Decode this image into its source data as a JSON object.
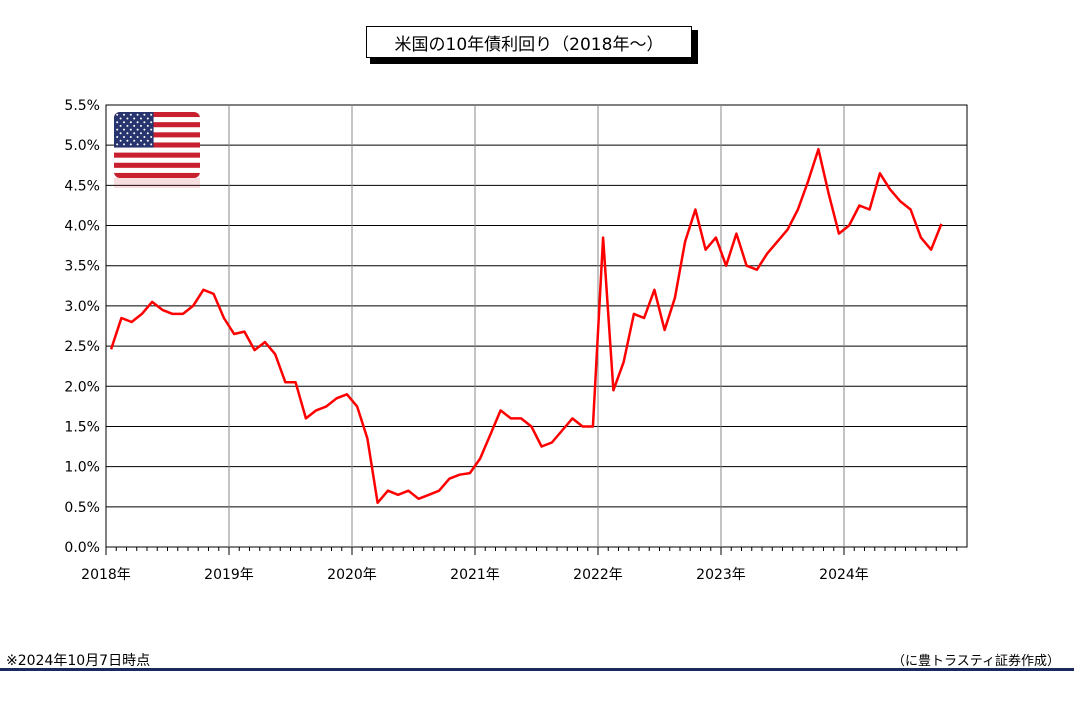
{
  "chart_data": {
    "type": "line",
    "title": "米国の10年債利回り（2018年～）",
    "xlabel": "",
    "ylabel": "",
    "ylim": [
      0.0,
      5.5
    ],
    "y_ticks": [
      "0.0%",
      "0.5%",
      "1.0%",
      "1.5%",
      "2.0%",
      "2.5%",
      "3.0%",
      "3.5%",
      "4.0%",
      "4.5%",
      "5.0%",
      "5.5%"
    ],
    "x_ticks": [
      "2018年",
      "2019年",
      "2020年",
      "2021年",
      "2022年",
      "2023年",
      "2024年"
    ],
    "x_range": [
      "2018-01",
      "2024-12"
    ],
    "grid": true,
    "line_color": "#ff0000",
    "series": [
      {
        "values": [
          [
            "2018-01",
            2.46
          ],
          [
            "2018-02",
            2.85
          ],
          [
            "2018-03",
            2.8
          ],
          [
            "2018-04",
            2.9
          ],
          [
            "2018-05",
            3.05
          ],
          [
            "2018-06",
            2.95
          ],
          [
            "2018-07",
            2.9
          ],
          [
            "2018-08",
            2.9
          ],
          [
            "2018-09",
            3.0
          ],
          [
            "2018-10",
            3.2
          ],
          [
            "2018-11",
            3.15
          ],
          [
            "2018-12",
            2.85
          ],
          [
            "2019-01",
            2.65
          ],
          [
            "2019-02",
            2.68
          ],
          [
            "2019-03",
            2.45
          ],
          [
            "2019-04",
            2.55
          ],
          [
            "2019-05",
            2.4
          ],
          [
            "2019-06",
            2.05
          ],
          [
            "2019-07",
            2.05
          ],
          [
            "2019-08",
            1.6
          ],
          [
            "2019-09",
            1.7
          ],
          [
            "2019-10",
            1.75
          ],
          [
            "2019-11",
            1.85
          ],
          [
            "2019-12",
            1.9
          ],
          [
            "2020-01",
            1.75
          ],
          [
            "2020-02",
            1.35
          ],
          [
            "2020-03",
            0.55
          ],
          [
            "2020-04",
            0.7
          ],
          [
            "2020-05",
            0.65
          ],
          [
            "2020-06",
            0.7
          ],
          [
            "2020-07",
            0.6
          ],
          [
            "2020-08",
            0.65
          ],
          [
            "2020-09",
            0.7
          ],
          [
            "2020-10",
            0.85
          ],
          [
            "2020-11",
            0.9
          ],
          [
            "2020-12",
            0.92
          ],
          [
            "2021-01",
            1.1
          ],
          [
            "2021-02",
            1.4
          ],
          [
            "2021-03",
            1.7
          ],
          [
            "2021-04",
            1.6
          ],
          [
            "2021-05",
            1.6
          ],
          [
            "2021-06",
            1.5
          ],
          [
            "2021-07",
            1.25
          ],
          [
            "2021-08",
            1.3
          ],
          [
            "2021-09",
            1.45
          ],
          [
            "2021-10",
            1.6
          ],
          [
            "2021-11",
            1.5
          ],
          [
            "2021-12",
            1.5
          ],
          [
            "2022-01",
            3.85
          ],
          [
            "2022-02",
            1.95
          ],
          [
            "2022-03",
            2.3
          ],
          [
            "2022-04",
            2.9
          ],
          [
            "2022-05",
            2.85
          ],
          [
            "2022-06",
            3.2
          ],
          [
            "2022-07",
            2.7
          ],
          [
            "2022-08",
            3.1
          ],
          [
            "2022-09",
            3.8
          ],
          [
            "2022-10",
            4.2
          ],
          [
            "2022-11",
            3.7
          ],
          [
            "2022-12",
            3.85
          ],
          [
            "2023-01",
            3.5
          ],
          [
            "2023-02",
            3.9
          ],
          [
            "2023-03",
            3.5
          ],
          [
            "2023-04",
            3.45
          ],
          [
            "2023-05",
            3.65
          ],
          [
            "2023-06",
            3.8
          ],
          [
            "2023-07",
            3.95
          ],
          [
            "2023-08",
            4.2
          ],
          [
            "2023-09",
            4.55
          ],
          [
            "2023-10",
            4.95
          ],
          [
            "2023-11",
            4.4
          ],
          [
            "2023-12",
            3.9
          ],
          [
            "2024-01",
            4.0
          ],
          [
            "2024-02",
            4.25
          ],
          [
            "2024-03",
            4.2
          ],
          [
            "2024-04",
            4.65
          ],
          [
            "2024-05",
            4.45
          ],
          [
            "2024-06",
            4.3
          ],
          [
            "2024-07",
            4.2
          ],
          [
            "2024-08",
            3.85
          ],
          [
            "2024-09",
            3.7
          ],
          [
            "2024-10",
            4.02
          ]
        ]
      }
    ]
  },
  "footnote": "※2024年10月7日時点",
  "source": "（に豊トラスティ証券作成）",
  "flag_icon": "us-flag-icon",
  "colors": {
    "line": "#ff0000",
    "grid": "#000000",
    "rule": "#1a2a5e"
  }
}
